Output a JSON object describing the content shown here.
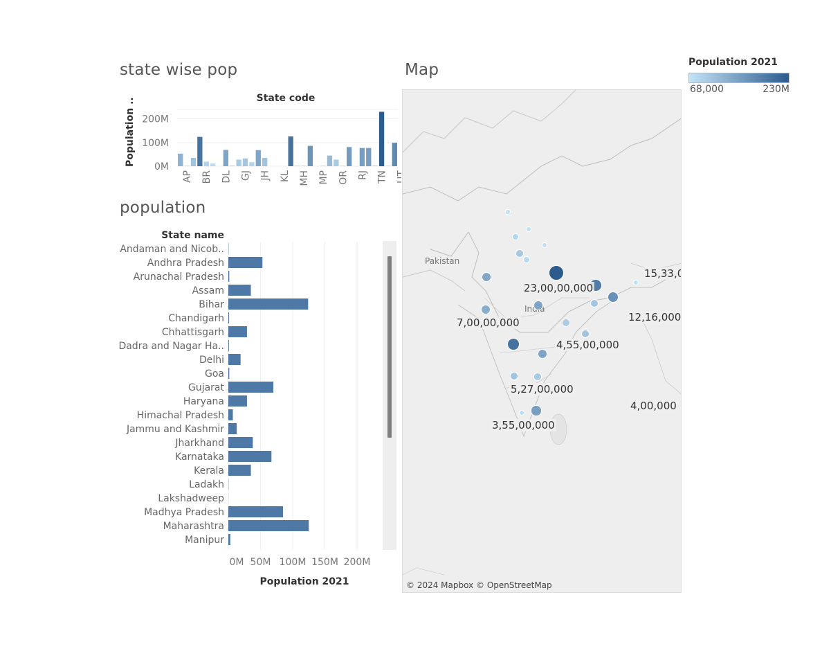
{
  "legend": {
    "title": "Population 2021",
    "min_label": "68,000",
    "max_label": "230M",
    "color_min": "#c4e3f7",
    "color_max": "#2c5b8d"
  },
  "sheets": {
    "state_wise_pop": {
      "title": "state wise pop"
    },
    "population": {
      "title": "population"
    },
    "map": {
      "title": "Map"
    }
  },
  "chart_data": [
    {
      "type": "bar",
      "title": "state wise pop",
      "header": "State code",
      "ylabel": "Population ..",
      "ylim": [
        0,
        240
      ],
      "yticks": [
        0,
        100,
        200
      ],
      "ytick_labels": [
        "0M",
        "100M",
        "200M"
      ],
      "x_tick_labels": [
        "AP",
        "BR",
        "DL",
        "GJ",
        "JH",
        "KL",
        "MH",
        "MP",
        "OR",
        "RJ",
        "TN",
        "UT"
      ],
      "values": [
        53,
        1,
        35,
        124,
        19,
        11,
        0,
        69,
        4,
        28,
        33,
        17,
        68,
        35,
        0,
        0,
        0,
        126,
        3,
        3,
        86,
        0,
        3,
        45,
        28,
        1,
        81,
        0,
        77,
        77,
        4,
        230,
        2,
        99
      ],
      "unit": "M"
    },
    {
      "type": "bar",
      "orientation": "horizontal",
      "title": "population",
      "categories_header": "State name",
      "xlabel": "Population 2021",
      "xlim": [
        0,
        240
      ],
      "xticks": [
        0,
        50,
        100,
        150,
        200
      ],
      "xtick_labels": [
        "0M",
        "50M",
        "100M",
        "150M",
        "200M"
      ],
      "categories": [
        "Andaman and Nicob..",
        "Andhra Pradesh",
        "Arunachal Pradesh",
        "Assam",
        "Bihar",
        "Chandigarh",
        "Chhattisgarh",
        "Dadra and Nagar Ha..",
        "Delhi",
        "Goa",
        "Gujarat",
        "Haryana",
        "Himachal Pradesh",
        "Jammu and Kashmir",
        "Jharkhand",
        "Karnataka",
        "Kerala",
        "Ladakh",
        "Lakshadweep",
        "Madhya Pradesh",
        "Maharashtra",
        "Manipur"
      ],
      "values": [
        0.4,
        53,
        1.5,
        35,
        124,
        1.2,
        29,
        1,
        19,
        1.5,
        70,
        29,
        7,
        13,
        38,
        67,
        35,
        0.3,
        0.07,
        85,
        125,
        3
      ],
      "unit": "M",
      "bar_color": "#4e79a7"
    },
    {
      "type": "scatter",
      "subtype": "symbol-map",
      "title": "Map",
      "country_labels": [
        "Pakistan",
        "India"
      ],
      "value_labels": [
        "23,00,00,000",
        "7,00,00,000",
        "4,55,00,000",
        "5,27,00,000",
        "3,55,00,000",
        "12,16,000",
        "15,33,0",
        "4,00,000"
      ],
      "credit": "© 2024 Mapbox © OpenStreetMap"
    }
  ]
}
